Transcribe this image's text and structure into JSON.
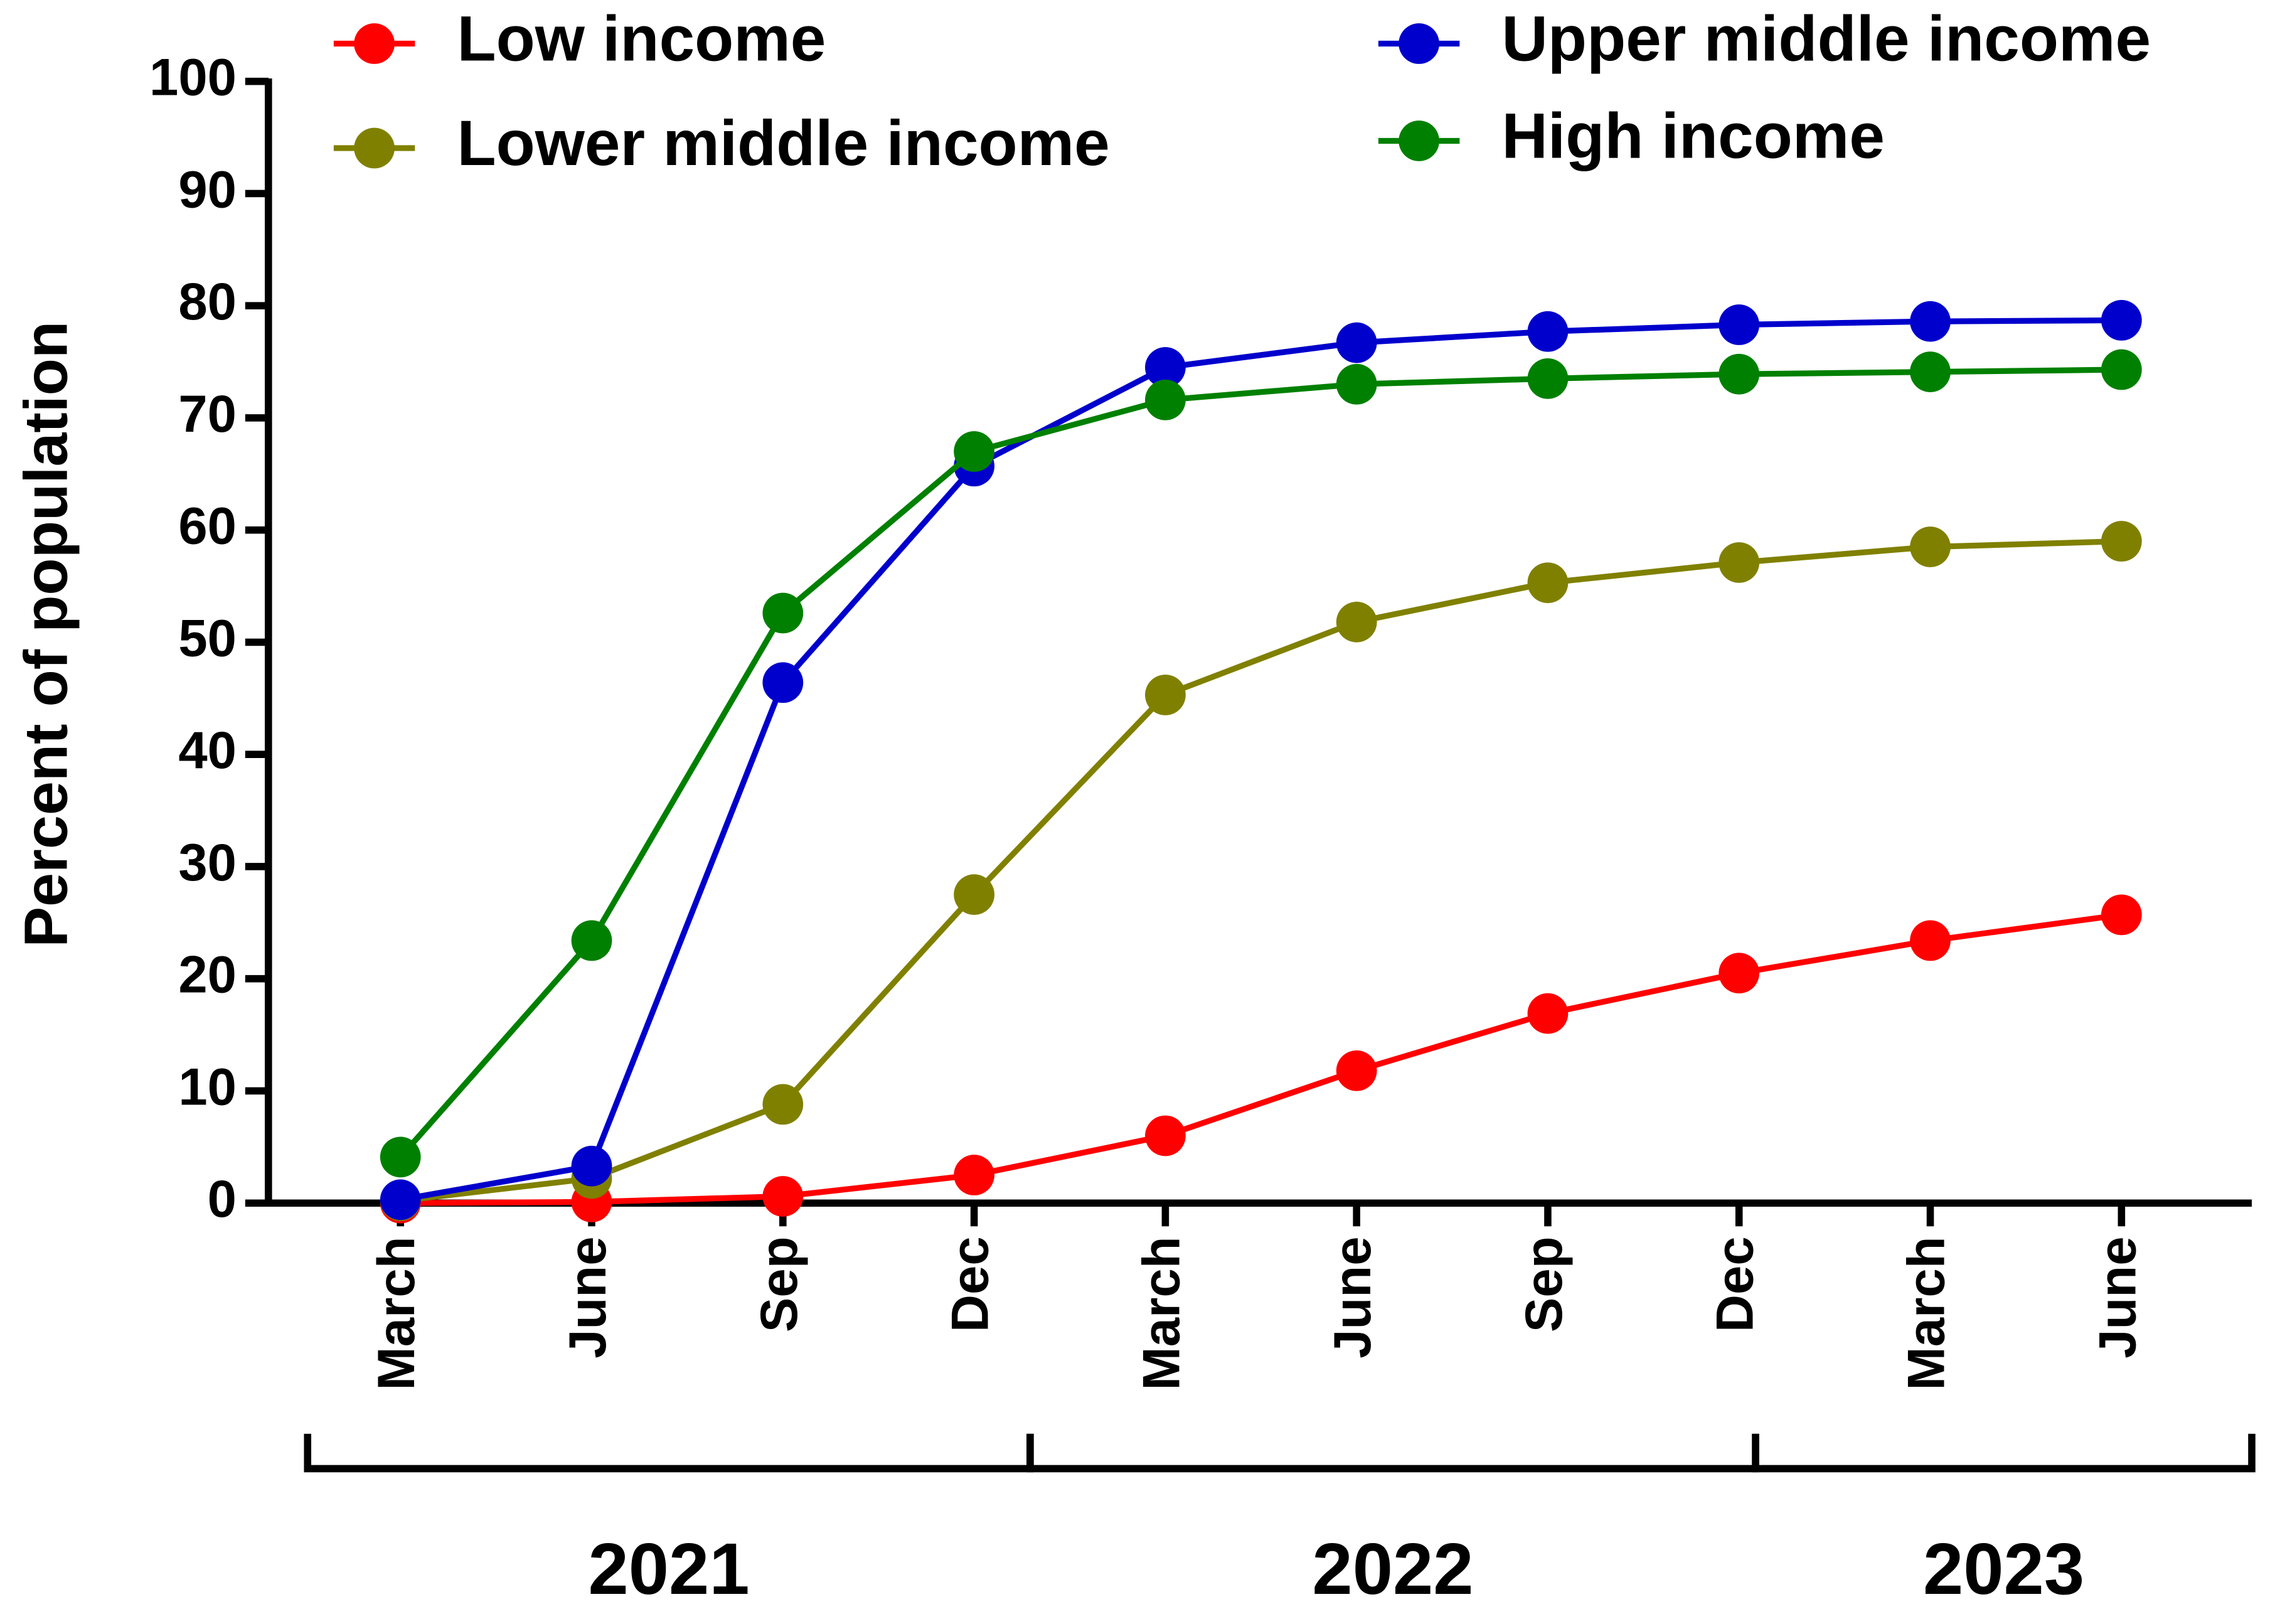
{
  "chart_data": {
    "type": "line",
    "y_label": "Percent of population",
    "categories": [
      "March",
      "June",
      "Sep",
      "Dec",
      "March",
      "June",
      "Sep",
      "Dec",
      "March",
      "June"
    ],
    "x_groups": [
      "2021",
      "2022",
      "2023"
    ],
    "ylim": [
      0,
      100
    ],
    "yticks": [
      0,
      10,
      20,
      30,
      40,
      50,
      60,
      70,
      80,
      90,
      100
    ],
    "grid": false,
    "series": [
      {
        "name": "Low income",
        "color": "#ff0000",
        "values": [
          0,
          0.1,
          0.6,
          2.5,
          6,
          11.8,
          16.9,
          20.5,
          23.4,
          25.7
        ]
      },
      {
        "name": "Lower middle income",
        "color": "#808000",
        "values": [
          0.2,
          2.2,
          8.8,
          27.5,
          45.3,
          51.8,
          55.3,
          57.1,
          58.5,
          59
        ]
      },
      {
        "name": "Upper middle income",
        "color": "#0000cc",
        "values": [
          0.3,
          3.3,
          46.4,
          65.7,
          74.5,
          76.7,
          77.7,
          78.3,
          78.6,
          78.7
        ]
      },
      {
        "name": "High income",
        "color": "#008000",
        "values": [
          4.1,
          23.4,
          52.6,
          67,
          71.6,
          73,
          73.5,
          73.9,
          74.1,
          74.3
        ]
      }
    ]
  }
}
